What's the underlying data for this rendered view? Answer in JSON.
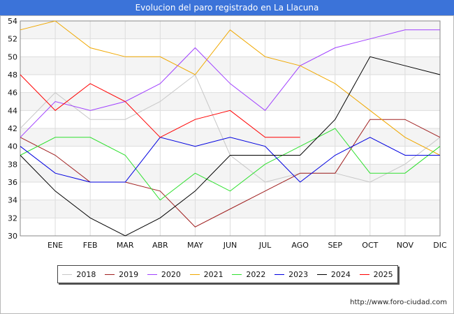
{
  "title": "Evolucion del paro registrado en La Llacuna",
  "footer": "http://www.foro-ciudad.com",
  "chart_data": {
    "type": "line",
    "title": "Evolucion del paro registrado en La Llacuna",
    "categories": [
      "",
      "ENE",
      "FEB",
      "MAR",
      "ABR",
      "MAY",
      "JUN",
      "JUL",
      "AGO",
      "SEP",
      "OCT",
      "NOV",
      "DIC"
    ],
    "ylim": [
      30,
      54
    ],
    "yticks": [
      30,
      32,
      34,
      36,
      38,
      40,
      42,
      44,
      46,
      48,
      50,
      52,
      54
    ],
    "grid": true,
    "legend_position": "bottom",
    "series": [
      {
        "name": "2018",
        "color": "#c8c8c8",
        "values": [
          42,
          46,
          43,
          43,
          45,
          48,
          39,
          36,
          37,
          37,
          36,
          38,
          41
        ]
      },
      {
        "name": "2019",
        "color": "#a02020",
        "values": [
          41,
          39,
          36,
          36,
          35,
          31,
          33,
          35,
          37,
          37,
          43,
          43,
          41
        ]
      },
      {
        "name": "2020",
        "color": "#a040ff",
        "values": [
          41,
          45,
          44,
          45,
          47,
          51,
          47,
          44,
          49,
          51,
          52,
          53,
          53
        ]
      },
      {
        "name": "2021",
        "color": "#f0a800",
        "values": [
          53,
          54,
          51,
          50,
          50,
          48,
          53,
          50,
          49,
          47,
          44,
          41,
          39
        ]
      },
      {
        "name": "2022",
        "color": "#30e030",
        "values": [
          39,
          41,
          41,
          39,
          34,
          37,
          35,
          38,
          40,
          42,
          37,
          37,
          40
        ]
      },
      {
        "name": "2023",
        "color": "#0000e0",
        "values": [
          40,
          37,
          36,
          36,
          41,
          40,
          41,
          40,
          36,
          39,
          41,
          39,
          39
        ]
      },
      {
        "name": "2024",
        "color": "#000000",
        "values": [
          39,
          35,
          32,
          30,
          32,
          35,
          39,
          39,
          39,
          43,
          50,
          49,
          48
        ]
      },
      {
        "name": "2025",
        "color": "#ff0000",
        "values": [
          48,
          44,
          47,
          45,
          41,
          43,
          44,
          41,
          41,
          null,
          null,
          null,
          null
        ]
      }
    ]
  }
}
